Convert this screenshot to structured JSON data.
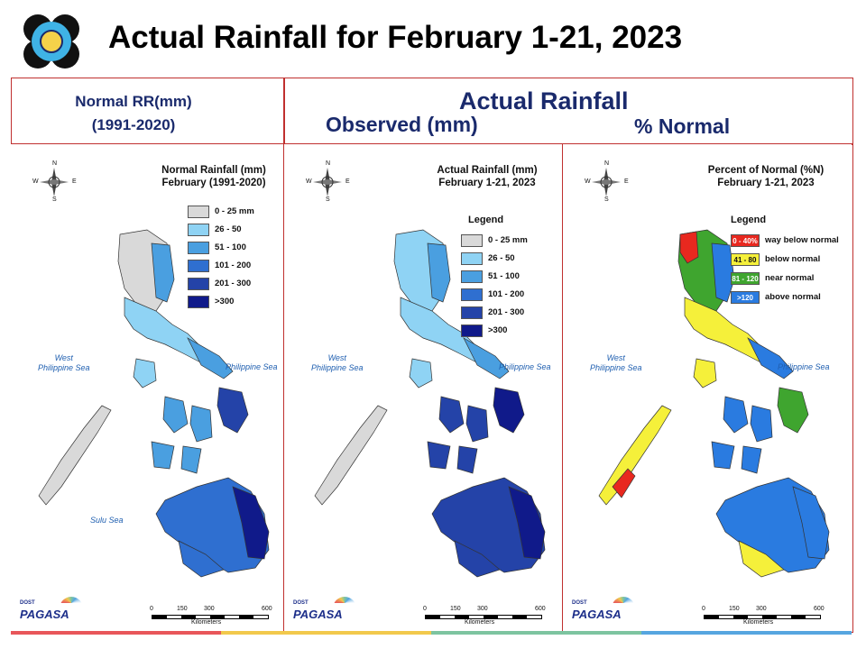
{
  "title": "Actual Rainfall for February 1-21, 2023",
  "headers": {
    "left_line1": "Normal RR(mm)",
    "left_line2": "(1991-2020)",
    "right_main": "Actual Rainfall",
    "right_observed": "Observed (mm)",
    "right_percent": "% Normal"
  },
  "panels": [
    {
      "title_line1": "Normal Rainfall (mm)",
      "title_line2": "February (1991-2020)",
      "legend_title": "",
      "legend": [
        {
          "label": "0 - 25 mm",
          "color": "#d9d9d9"
        },
        {
          "label": "26 - 50",
          "color": "#8fd3f4"
        },
        {
          "label": "51 - 100",
          "color": "#4a9fe0"
        },
        {
          "label": "101 - 200",
          "color": "#2f6fd0"
        },
        {
          "label": "201 - 300",
          "color": "#2443a8"
        },
        {
          "label": ">300",
          "color": "#101a8a"
        }
      ],
      "seas": [
        "West Philippine Sea",
        "Philippine Sea",
        "Sulu Sea"
      ]
    },
    {
      "title_line1": "Actual Rainfall (mm)",
      "title_line2": "February 1-21, 2023",
      "legend_title": "Legend",
      "legend": [
        {
          "label": "0 - 25 mm",
          "color": "#d9d9d9"
        },
        {
          "label": "26 - 50",
          "color": "#8fd3f4"
        },
        {
          "label": "51 - 100",
          "color": "#4a9fe0"
        },
        {
          "label": "101 - 200",
          "color": "#2f6fd0"
        },
        {
          "label": "201 - 300",
          "color": "#2443a8"
        },
        {
          "label": ">300",
          "color": "#101a8a"
        }
      ],
      "seas": [
        "West Philippine Sea",
        "Philippine Sea"
      ]
    },
    {
      "title_line1": "Percent of Normal (%N)",
      "title_line2": "February 1-21, 2023",
      "legend_title": "Legend",
      "legend": [
        {
          "box": "0 - 40%",
          "label": "way below normal",
          "color": "#e8281f"
        },
        {
          "box": "41 - 80",
          "label": "below normal",
          "color": "#f5f03a"
        },
        {
          "box": "81 - 120",
          "label": "near normal",
          "color": "#3fa52f"
        },
        {
          "box": ">120",
          "label": "above normal",
          "color": "#2a7be0"
        }
      ],
      "seas": [
        "West Philippine Sea",
        "Philippine Sea"
      ]
    }
  ],
  "scale": {
    "ticks": [
      "0",
      "150",
      "300",
      "600"
    ],
    "unit": "Kilometers"
  },
  "compass": {
    "n": "N",
    "s": "S",
    "e": "E",
    "w": "W"
  },
  "logo": {
    "text": "PAGASA",
    "small": "DOST"
  },
  "colors": {
    "frame": "#c0302f",
    "header_text": "#1a2a6c"
  },
  "footer_colors": [
    "#e8565a",
    "#f2c94c",
    "#7dc4a0",
    "#56a6e0"
  ]
}
